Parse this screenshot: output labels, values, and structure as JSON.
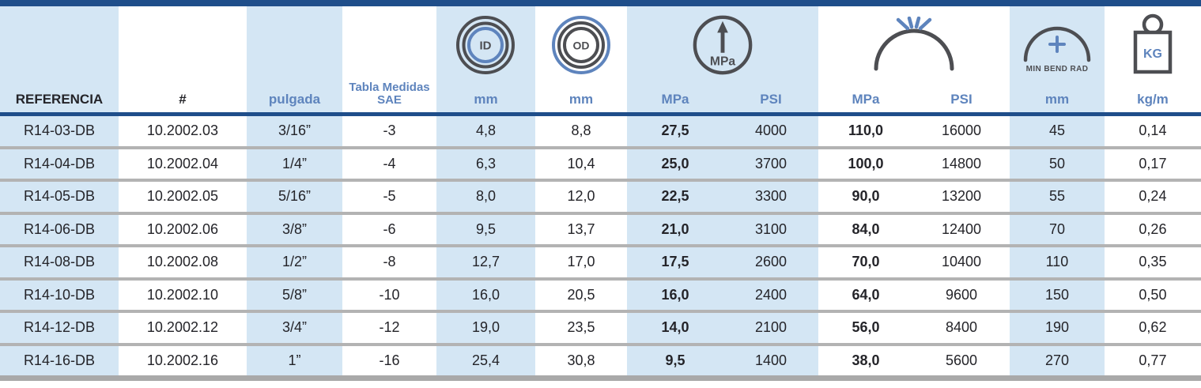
{
  "colors": {
    "navy_bar": "#1f4e8a",
    "light_blue_cell": "#d4e6f4",
    "blue_accent_text": "#5e84bd",
    "dark_text": "#242429",
    "icon_gray": "#4d4e52",
    "row_separator_gray": "#b3b3b3"
  },
  "header": {
    "columns": [
      {
        "id": "referencia",
        "label": "REFERENCIA"
      },
      {
        "id": "part-number",
        "label": "#"
      },
      {
        "id": "pulgada",
        "label": "pulgada"
      },
      {
        "id": "sae",
        "label": "Tabla Medidas SAE"
      },
      {
        "id": "id-mm",
        "label": "mm"
      },
      {
        "id": "od-mm",
        "label": "mm"
      },
      {
        "id": "working-pressure-mpa",
        "label": "MPa"
      },
      {
        "id": "working-pressure-psi",
        "label": "PSI"
      },
      {
        "id": "burst-pressure-mpa",
        "label": "MPa"
      },
      {
        "id": "burst-pressure-psi",
        "label": "PSI"
      },
      {
        "id": "min-bend-radius-mm",
        "label": "mm"
      },
      {
        "id": "weight-kg-m",
        "label": "kg/m"
      }
    ],
    "icons": {
      "id_label": "ID",
      "od_label": "OD",
      "gauge_label": "MPa",
      "min_bend_label": "MIN BEND RAD",
      "kg_label": "KG"
    }
  },
  "table": {
    "columns": [
      {
        "id": "referencia",
        "bg": "blue",
        "bold": false
      },
      {
        "id": "part-number",
        "bg": "white",
        "bold": false
      },
      {
        "id": "pulgada",
        "bg": "blue",
        "bold": false
      },
      {
        "id": "sae",
        "bg": "white",
        "bold": false
      },
      {
        "id": "id-mm",
        "bg": "blue",
        "bold": false
      },
      {
        "id": "od-mm",
        "bg": "white",
        "bold": false
      },
      {
        "id": "working-pressure-mpa",
        "bg": "blue",
        "bold": true
      },
      {
        "id": "working-pressure-psi",
        "bg": "blue",
        "bold": false
      },
      {
        "id": "burst-pressure-mpa",
        "bg": "white",
        "bold": true
      },
      {
        "id": "burst-pressure-psi",
        "bg": "white",
        "bold": false
      },
      {
        "id": "min-bend-radius-mm",
        "bg": "blue",
        "bold": false
      },
      {
        "id": "weight-kg-m",
        "bg": "white",
        "bold": false
      }
    ],
    "rows": [
      [
        "R14-03-DB",
        "10.2002.03",
        "3/16”",
        "-3",
        "4,8",
        "8,8",
        "27,5",
        "4000",
        "110,0",
        "16000",
        "45",
        "0,14"
      ],
      [
        "R14-04-DB",
        "10.2002.04",
        "1/4”",
        "-4",
        "6,3",
        "10,4",
        "25,0",
        "3700",
        "100,0",
        "14800",
        "50",
        "0,17"
      ],
      [
        "R14-05-DB",
        "10.2002.05",
        "5/16”",
        "-5",
        "8,0",
        "12,0",
        "22,5",
        "3300",
        "90,0",
        "13200",
        "55",
        "0,24"
      ],
      [
        "R14-06-DB",
        "10.2002.06",
        "3/8”",
        "-6",
        "9,5",
        "13,7",
        "21,0",
        "3100",
        "84,0",
        "12400",
        "70",
        "0,26"
      ],
      [
        "R14-08-DB",
        "10.2002.08",
        "1/2”",
        "-8",
        "12,7",
        "17,0",
        "17,5",
        "2600",
        "70,0",
        "10400",
        "110",
        "0,35"
      ],
      [
        "R14-10-DB",
        "10.2002.10",
        "5/8”",
        "-10",
        "16,0",
        "20,5",
        "16,0",
        "2400",
        "64,0",
        "9600",
        "150",
        "0,50"
      ],
      [
        "R14-12-DB",
        "10.2002.12",
        "3/4”",
        "-12",
        "19,0",
        "23,5",
        "14,0",
        "2100",
        "56,0",
        "8400",
        "190",
        "0,62"
      ],
      [
        "R14-16-DB",
        "10.2002.16",
        "1”",
        "-16",
        "25,4",
        "30,8",
        "9,5",
        "1400",
        "38,0",
        "5600",
        "270",
        "0,77"
      ]
    ]
  }
}
